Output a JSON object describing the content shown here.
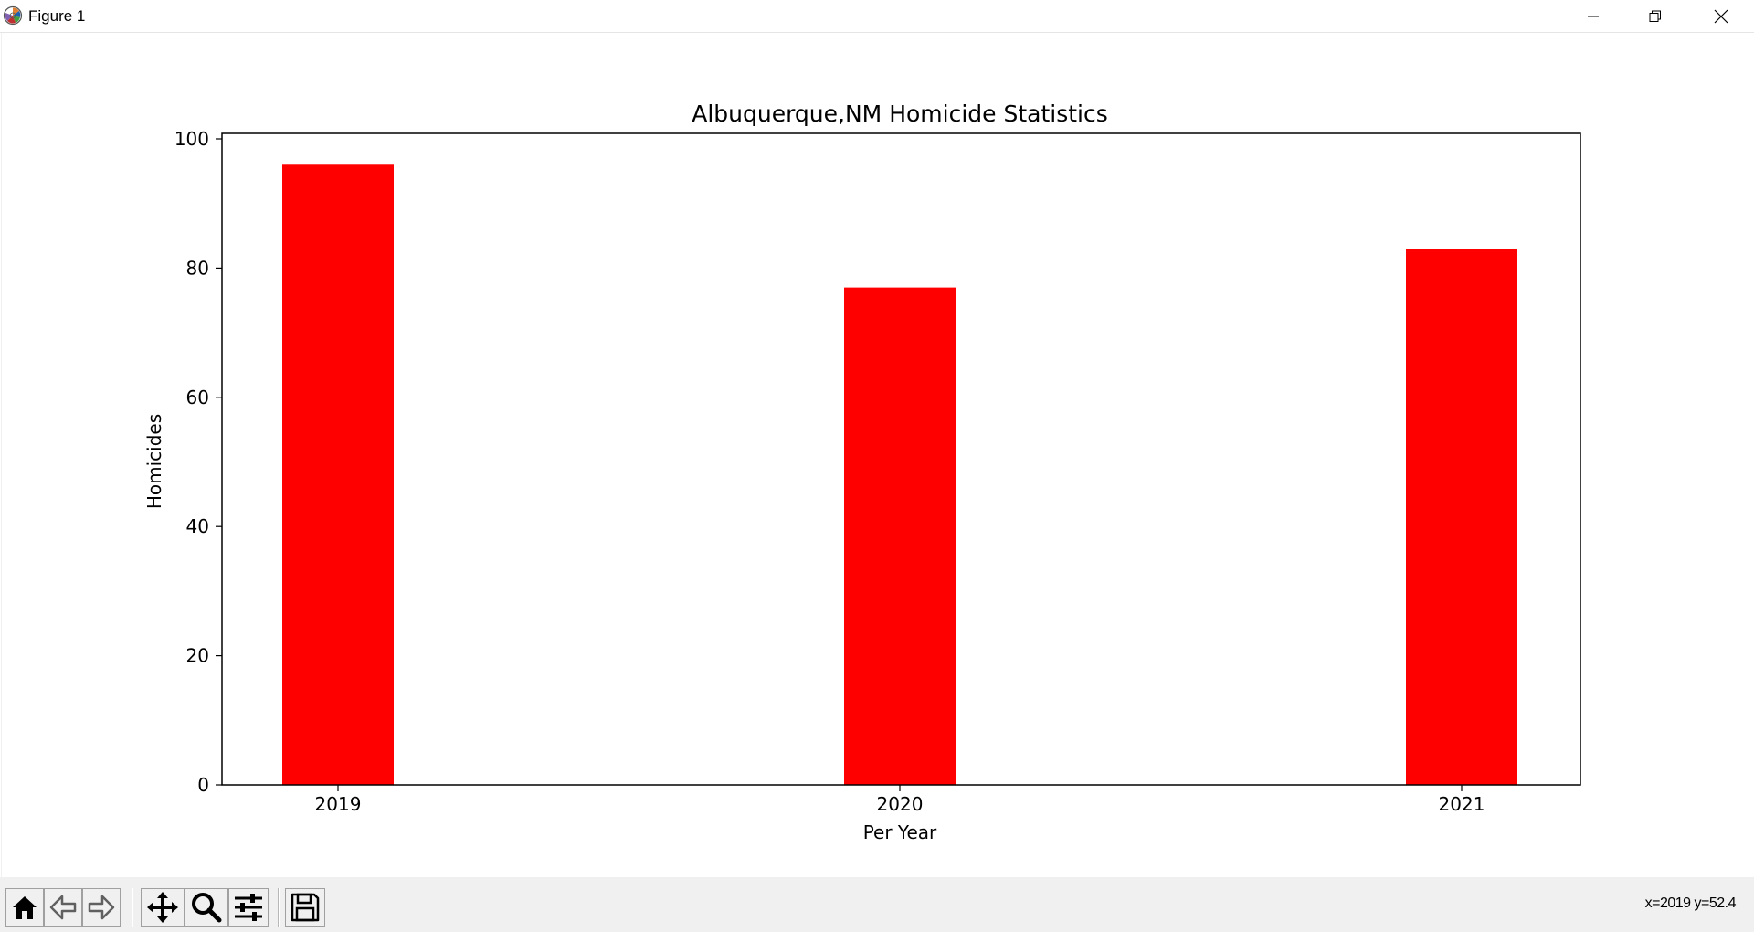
{
  "window": {
    "title": "Figure 1",
    "icon": "matplotlib-icon",
    "controls": [
      "minimize-icon",
      "restore-icon",
      "close-icon"
    ]
  },
  "chart_data": {
    "type": "bar",
    "title": "Albuquerque,NM Homicide Statistics",
    "xlabel": "Per Year",
    "ylabel": "Homicides",
    "categories": [
      "2019",
      "2020",
      "2021"
    ],
    "values": [
      96,
      77,
      83
    ],
    "ylim": [
      0,
      100
    ],
    "yticks": [
      "0",
      "20",
      "40",
      "60",
      "80",
      "100"
    ],
    "bar_color": "#ff0000",
    "grid": false
  },
  "toolbar": {
    "buttons": [
      "home-icon",
      "back-icon",
      "forward-icon",
      "pan-icon",
      "zoom-icon",
      "configure-subplots-icon",
      "save-icon"
    ]
  },
  "status": {
    "coords": "x=2019 y=52.4"
  }
}
